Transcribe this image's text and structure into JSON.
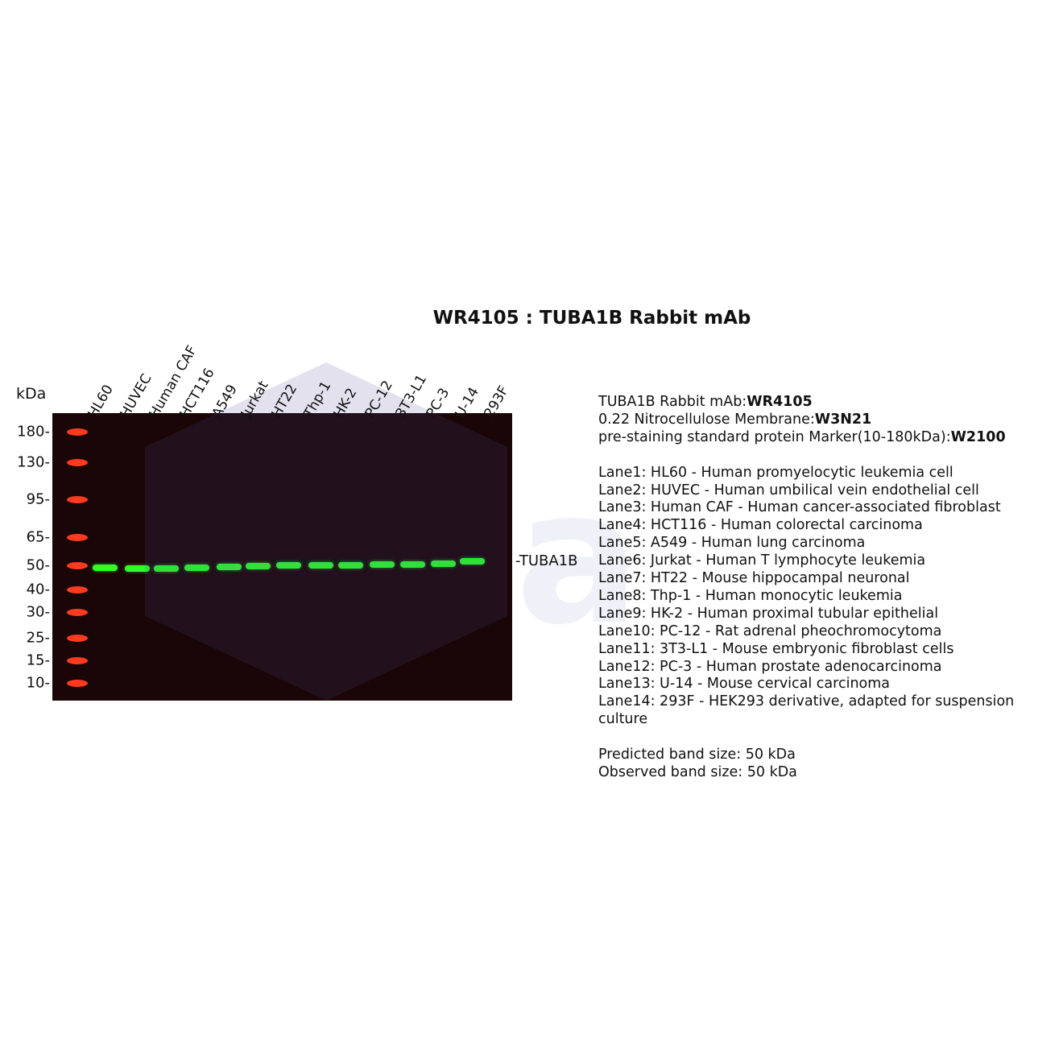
{
  "title": "WR4105 : TUBA1B Rabbit mAb",
  "kda_label": "kDa",
  "markers": [
    "180-",
    "130-",
    "95-",
    "65-",
    "50-",
    "40-",
    "30-",
    "25-",
    "15-",
    "10-"
  ],
  "lanes": [
    "HL60",
    "HUVEC",
    "Human CAF",
    "HCT116",
    "A549",
    "Jurkat",
    "HT22",
    "Thp-1",
    "HK-2",
    "PC-12",
    "3T3-L1",
    "PC-3",
    "U-14",
    "293F"
  ],
  "band_label": "-TUBA1B",
  "colors": {
    "ladder": "#ff3a1e",
    "band": "#2cff2a",
    "membrane": "#1a0606"
  },
  "info": {
    "antibody_label": "TUBA1B Rabbit mAb:",
    "antibody_code": "WR4105",
    "membrane_label": "0.22 Nitrocellulose Membrane:",
    "membrane_code": "W3N21",
    "marker_label": "pre-staining standard protein Marker(10-180kDa):",
    "marker_code": "W2100",
    "lane_descriptions": [
      "Lane1: HL60 - Human promyelocytic leukemia cell",
      "Lane2: HUVEC - Human umbilical vein endothelial cell",
      "Lane3: Human CAF - Human cancer-associated fibroblast",
      "Lane4: HCT116 - Human colorectal carcinoma",
      "Lane5: A549 - Human lung carcinoma",
      "Lane6: Jurkat - Human T lymphocyte leukemia",
      "Lane7: HT22 - Mouse hippocampal neuronal",
      "Lane8: Thp-1 - Human monocytic leukemia",
      "Lane9: HK-2 - Human proximal tubular epithelial",
      "Lane10: PC-12 - Rat adrenal pheochromocytoma",
      "Lane11: 3T3-L1 - Mouse embryonic fibroblast cells",
      "Lane12: PC-3 - Human prostate adenocarcinoma",
      "Lane13: U-14 - Mouse cervical carcinoma",
      "Lane14: 293F - HEK293 derivative, adapted for suspension culture"
    ],
    "predicted": "Predicted band size: 50 kDa",
    "observed": "Observed band size: 50 kDa"
  }
}
